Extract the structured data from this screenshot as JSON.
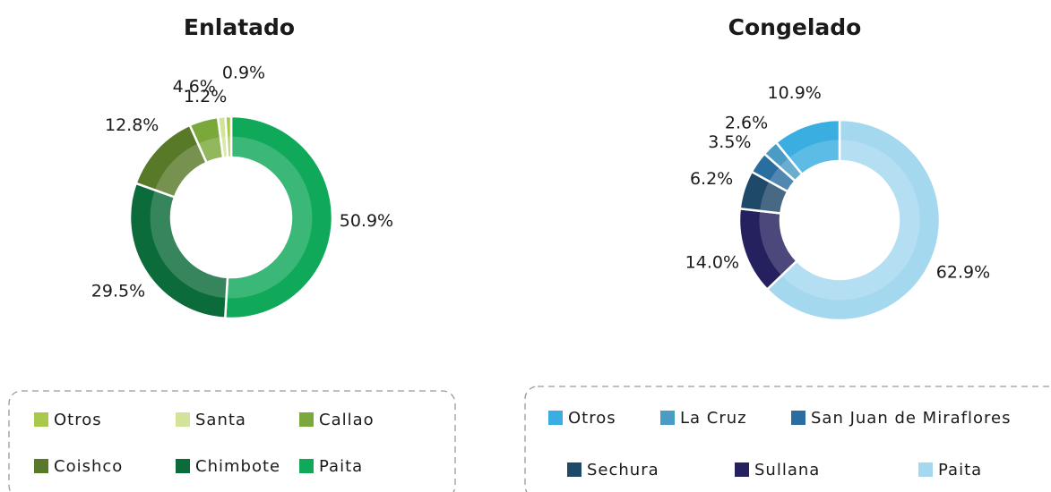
{
  "chart_data": [
    {
      "type": "pie",
      "title": "Enlatado",
      "categories": [
        "Otros",
        "Santa",
        "Callao",
        "Coishco",
        "Chimbote",
        "Paita"
      ],
      "values": [
        0.9,
        1.2,
        4.6,
        12.8,
        29.5,
        50.9
      ],
      "value_labels": [
        "0.9%",
        "1.2%",
        "4.6%",
        "12.8%",
        "29.5%",
        "50.9%"
      ],
      "colors": [
        "#a8c94c",
        "#d3e39a",
        "#7aa83a",
        "#587a28",
        "#0b6b3a",
        "#10a95a"
      ]
    },
    {
      "type": "pie",
      "title": "Congelado",
      "categories": [
        "Otros",
        "La Cruz",
        "San Juan de Miraflores",
        "Sechura",
        "Sullana",
        "Paita"
      ],
      "values": [
        10.9,
        2.6,
        3.5,
        6.2,
        14.0,
        62.9
      ],
      "value_labels": [
        "10.9%",
        "2.6%",
        "3.5%",
        "6.2%",
        "14.0%",
        "62.9%"
      ],
      "colors": [
        "#3aaee0",
        "#4a9cc4",
        "#2a6ea0",
        "#1f4968",
        "#25205e",
        "#a4d8ef"
      ]
    }
  ]
}
